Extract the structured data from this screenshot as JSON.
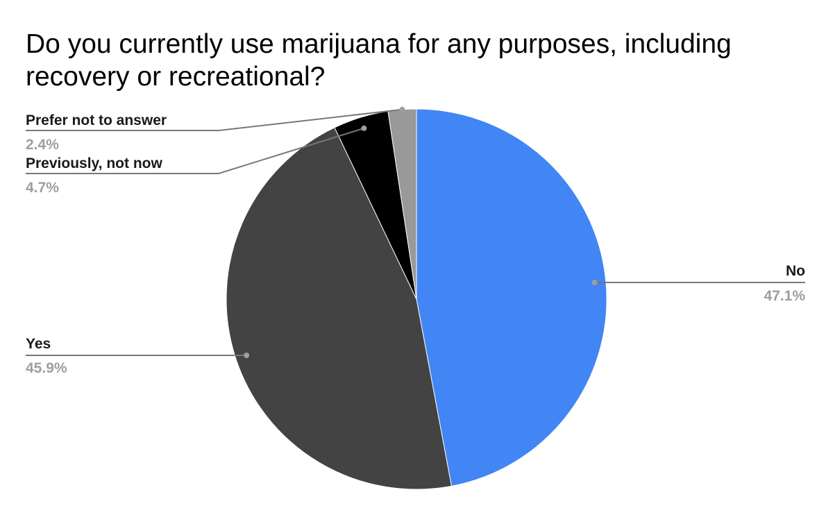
{
  "chart_data": {
    "type": "pie",
    "title": "Do you currently use marijuana for any purposes, including recovery or recreational?",
    "start_angle_deg": 0,
    "direction": "clockwise",
    "slices": [
      {
        "label": "No",
        "value": 47.1,
        "display": "47.1%",
        "color": "#4285f4"
      },
      {
        "label": "Yes",
        "value": 45.9,
        "display": "45.9%",
        "color": "#434343"
      },
      {
        "label": "Previously, not now",
        "value": 4.7,
        "display": "4.7%",
        "color": "#000000"
      },
      {
        "label": "Prefer not to answer",
        "value": 2.4,
        "display": "2.4%",
        "color": "#999999"
      }
    ],
    "leader_line_color": "#777777"
  }
}
